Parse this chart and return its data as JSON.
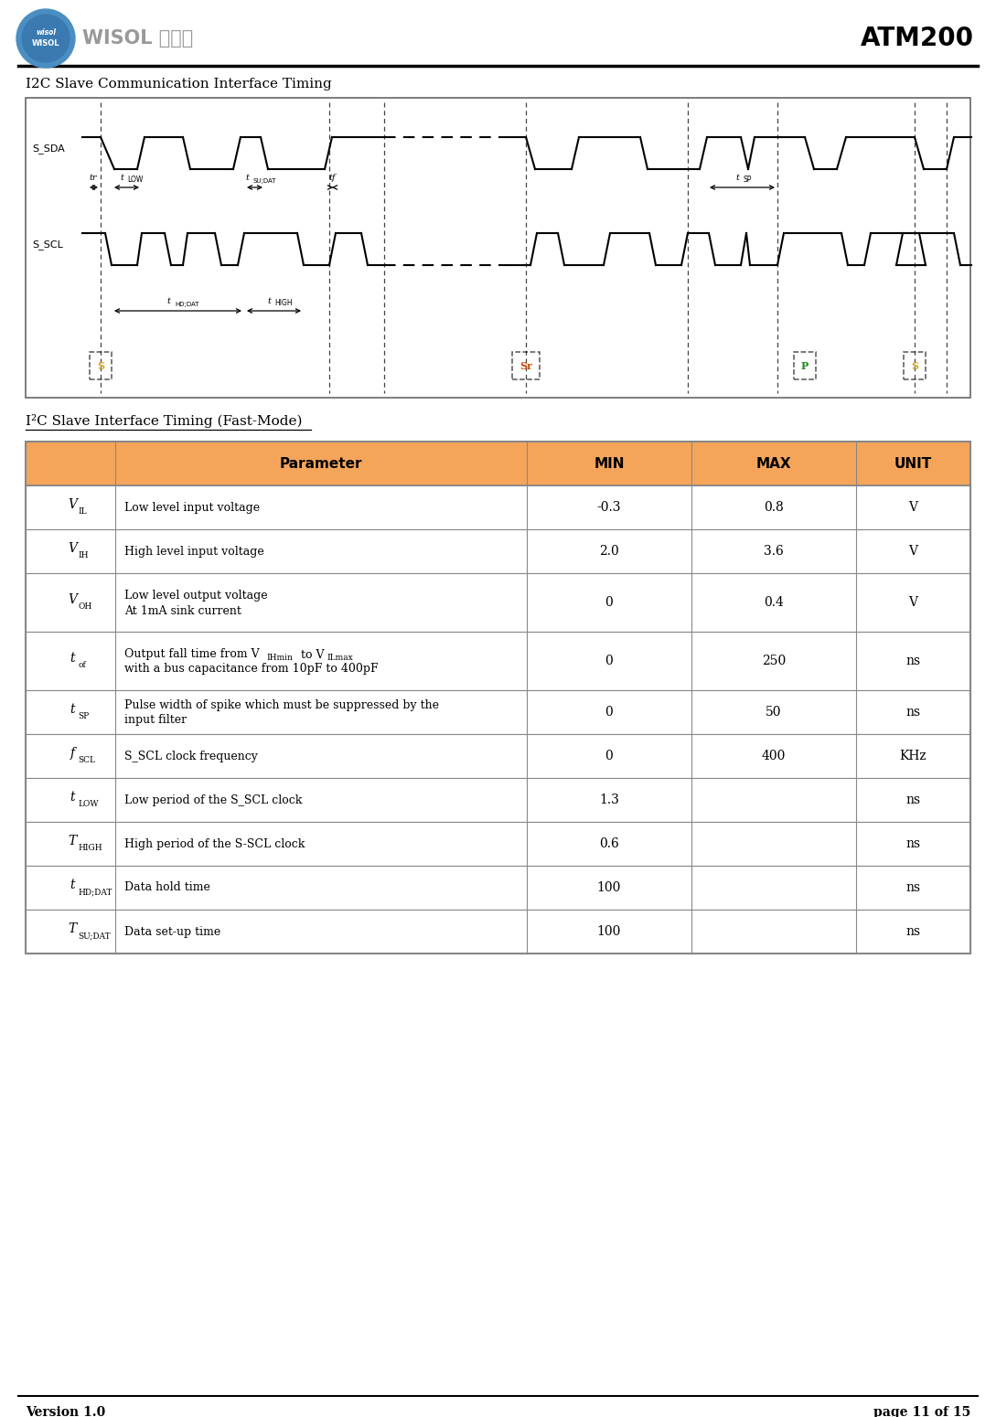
{
  "title": "ATM200",
  "section_title": "I2C Slave Communication Interface Timing",
  "table_title": "I²C Slave Interface Timing (Fast-Mode)",
  "table_header_bg": "#F5A55A",
  "table_border_color": "#888888",
  "bg_color": "#ffffff",
  "col_headers": [
    "",
    "Parameter",
    "MIN",
    "MAX",
    "UNIT"
  ],
  "rows": [
    {
      "symbol_main": "V",
      "symbol_sub": "IL",
      "description": "Low level input voltage",
      "desc2": "",
      "min": "-0.3",
      "max": "0.8",
      "unit": "V"
    },
    {
      "symbol_main": "V",
      "symbol_sub": "IH",
      "description": "High level input voltage",
      "desc2": "",
      "min": "2.0",
      "max": "3.6",
      "unit": "V"
    },
    {
      "symbol_main": "V",
      "symbol_sub": "OH",
      "description": "Low level output voltage",
      "desc2": "At 1mA sink current",
      "min": "0",
      "max": "0.4",
      "unit": "V"
    },
    {
      "symbol_main": "t",
      "symbol_sub": "of",
      "description": "Output fall time from Vᴵᴴmin to Vᴵᴱmax",
      "desc2": "with a bus capacitance from 10pF to 400pF",
      "min": "0",
      "max": "250",
      "unit": "ns"
    },
    {
      "symbol_main": "t",
      "symbol_sub": "SP",
      "description": "Pulse width of spike which must be suppressed by the",
      "desc2": "input filter",
      "min": "0",
      "max": "50",
      "unit": "ns"
    },
    {
      "symbol_main": "f",
      "symbol_sub": "SCL",
      "description": "S_SCL clock frequency",
      "desc2": "",
      "min": "0",
      "max": "400",
      "unit": "KHz"
    },
    {
      "symbol_main": "t",
      "symbol_sub": "LOW",
      "description": "Low period of the S_SCL clock",
      "desc2": "",
      "min": "1.3",
      "max": "",
      "unit": "ns"
    },
    {
      "symbol_main": "T",
      "symbol_sub": "HIGH",
      "description": "High period of the S-SCL clock",
      "desc2": "",
      "min": "0.6",
      "max": "",
      "unit": "ns"
    },
    {
      "symbol_main": "t",
      "symbol_sub": "HD;DAT",
      "description": "Data hold time",
      "desc2": "",
      "min": "100",
      "max": "",
      "unit": "ns"
    },
    {
      "symbol_main": "T",
      "symbol_sub": "SU;DAT",
      "description": "Data set-up time",
      "desc2": "",
      "min": "100",
      "max": "",
      "unit": "ns"
    }
  ],
  "footer_left": "Version 1.0",
  "footer_right": "page 11 of 15"
}
